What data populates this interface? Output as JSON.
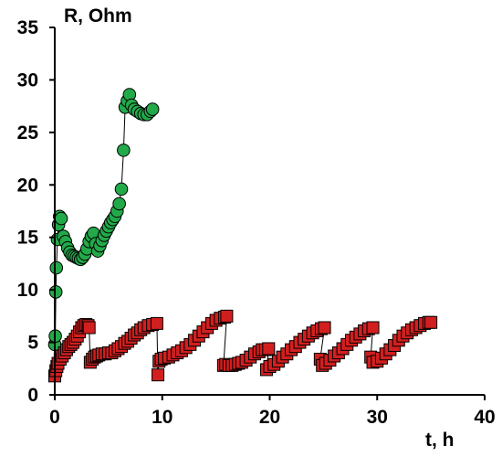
{
  "chart_data": {
    "type": "scatter",
    "title": "",
    "xlabel": "t, h",
    "ylabel": "R, Ohm",
    "xlim": [
      0,
      40
    ],
    "ylim": [
      0,
      35
    ],
    "xticks": [
      "0",
      "10",
      "20",
      "30",
      "40"
    ],
    "yticks": [
      "0",
      "5",
      "10",
      "15",
      "20",
      "25",
      "30",
      "35"
    ],
    "grid": false,
    "legend": "none",
    "series": [
      {
        "marker": "circle",
        "color": "#22a94a",
        "line": true,
        "points": [
          [
            0.0,
            4.8
          ],
          [
            0.05,
            5.6
          ],
          [
            0.1,
            9.8
          ],
          [
            0.15,
            12.1
          ],
          [
            0.25,
            14.8
          ],
          [
            0.35,
            16.2
          ],
          [
            0.45,
            17.0
          ],
          [
            0.6,
            16.8
          ],
          [
            0.8,
            15.1
          ],
          [
            1.0,
            14.6
          ],
          [
            1.2,
            14.0
          ],
          [
            1.4,
            13.6
          ],
          [
            1.6,
            13.3
          ],
          [
            1.8,
            13.2
          ],
          [
            2.0,
            13.1
          ],
          [
            2.2,
            13.0
          ],
          [
            2.4,
            12.9
          ],
          [
            2.6,
            13.1
          ],
          [
            2.8,
            13.4
          ],
          [
            3.0,
            13.9
          ],
          [
            3.2,
            14.6
          ],
          [
            3.4,
            15.1
          ],
          [
            3.6,
            15.4
          ],
          [
            3.8,
            14.4
          ],
          [
            4.0,
            13.7
          ],
          [
            4.2,
            14.2
          ],
          [
            4.4,
            14.7
          ],
          [
            4.6,
            15.2
          ],
          [
            4.8,
            15.6
          ],
          [
            5.0,
            16.0
          ],
          [
            5.2,
            16.4
          ],
          [
            5.4,
            16.7
          ],
          [
            5.6,
            17.0
          ],
          [
            5.8,
            17.5
          ],
          [
            6.0,
            18.2
          ],
          [
            6.2,
            19.6
          ],
          [
            6.4,
            23.3
          ],
          [
            6.55,
            27.4
          ],
          [
            6.75,
            28.0
          ],
          [
            6.95,
            28.6
          ],
          [
            7.15,
            27.6
          ],
          [
            7.4,
            27.2
          ],
          [
            7.7,
            27.0
          ],
          [
            8.0,
            26.8
          ],
          [
            8.3,
            26.7
          ],
          [
            8.6,
            26.7
          ],
          [
            8.9,
            27.0
          ],
          [
            9.1,
            27.2
          ]
        ]
      },
      {
        "marker": "square",
        "color": "#d11f1f",
        "line": true,
        "points": [
          [
            0.0,
            1.8
          ],
          [
            0.1,
            2.3
          ],
          [
            0.2,
            2.7
          ],
          [
            0.3,
            3.0
          ],
          [
            0.5,
            3.4
          ],
          [
            0.7,
            3.7
          ],
          [
            0.9,
            4.0
          ],
          [
            1.1,
            4.3
          ],
          [
            1.3,
            4.6
          ],
          [
            1.5,
            4.8
          ],
          [
            1.7,
            5.0
          ],
          [
            1.9,
            5.3
          ],
          [
            2.1,
            5.6
          ],
          [
            2.3,
            6.0
          ],
          [
            2.5,
            6.4
          ],
          [
            2.7,
            6.6
          ],
          [
            2.9,
            6.7
          ],
          [
            3.1,
            6.6
          ],
          [
            3.2,
            6.4
          ],
          [
            3.3,
            3.1
          ],
          [
            3.5,
            3.4
          ],
          [
            3.7,
            3.6
          ],
          [
            3.9,
            3.7
          ],
          [
            4.1,
            3.8
          ],
          [
            4.4,
            3.9
          ],
          [
            4.7,
            3.9
          ],
          [
            5.0,
            4.0
          ],
          [
            5.3,
            4.0
          ],
          [
            5.6,
            4.2
          ],
          [
            5.9,
            4.4
          ],
          [
            6.2,
            4.6
          ],
          [
            6.5,
            4.9
          ],
          [
            6.8,
            5.1
          ],
          [
            7.1,
            5.4
          ],
          [
            7.4,
            5.7
          ],
          [
            7.7,
            5.9
          ],
          [
            8.0,
            6.2
          ],
          [
            8.3,
            6.4
          ],
          [
            8.7,
            6.6
          ],
          [
            9.1,
            6.7
          ],
          [
            9.5,
            6.8
          ],
          [
            9.6,
            1.9
          ],
          [
            9.7,
            3.2
          ],
          [
            9.9,
            3.4
          ],
          [
            10.2,
            3.5
          ],
          [
            10.6,
            3.6
          ],
          [
            11.0,
            3.8
          ],
          [
            11.4,
            4.0
          ],
          [
            11.8,
            4.2
          ],
          [
            12.2,
            4.5
          ],
          [
            12.6,
            4.8
          ],
          [
            13.0,
            5.2
          ],
          [
            13.4,
            5.6
          ],
          [
            13.8,
            6.0
          ],
          [
            14.2,
            6.4
          ],
          [
            14.6,
            6.8
          ],
          [
            15.0,
            7.1
          ],
          [
            15.4,
            7.3
          ],
          [
            15.8,
            7.4
          ],
          [
            16.0,
            7.5
          ],
          [
            15.7,
            2.8
          ],
          [
            15.9,
            2.9
          ],
          [
            16.2,
            2.8
          ],
          [
            16.5,
            2.8
          ],
          [
            16.8,
            2.9
          ],
          [
            17.1,
            3.0
          ],
          [
            17.4,
            3.1
          ],
          [
            17.8,
            3.3
          ],
          [
            18.2,
            3.6
          ],
          [
            18.6,
            3.9
          ],
          [
            19.0,
            4.1
          ],
          [
            19.3,
            4.3
          ],
          [
            19.6,
            4.3
          ],
          [
            19.9,
            4.4
          ],
          [
            19.7,
            2.4
          ],
          [
            20.0,
            2.7
          ],
          [
            20.4,
            2.9
          ],
          [
            20.8,
            3.2
          ],
          [
            21.2,
            3.6
          ],
          [
            21.6,
            3.9
          ],
          [
            22.0,
            4.3
          ],
          [
            22.4,
            4.6
          ],
          [
            22.8,
            5.0
          ],
          [
            23.2,
            5.3
          ],
          [
            23.6,
            5.6
          ],
          [
            24.0,
            5.9
          ],
          [
            24.4,
            6.1
          ],
          [
            24.8,
            6.3
          ],
          [
            25.1,
            6.4
          ],
          [
            24.7,
            3.4
          ],
          [
            24.9,
            2.8
          ],
          [
            25.2,
            3.0
          ],
          [
            25.6,
            3.3
          ],
          [
            26.0,
            3.7
          ],
          [
            26.4,
            4.0
          ],
          [
            26.8,
            4.4
          ],
          [
            27.2,
            4.8
          ],
          [
            27.6,
            5.2
          ],
          [
            28.0,
            5.5
          ],
          [
            28.4,
            5.8
          ],
          [
            28.8,
            6.1
          ],
          [
            29.2,
            6.3
          ],
          [
            29.6,
            6.4
          ],
          [
            29.4,
            3.6
          ],
          [
            29.6,
            3.1
          ],
          [
            30.0,
            3.2
          ],
          [
            30.4,
            3.5
          ],
          [
            30.8,
            3.9
          ],
          [
            31.2,
            4.3
          ],
          [
            31.6,
            4.7
          ],
          [
            32.0,
            5.2
          ],
          [
            32.4,
            5.6
          ],
          [
            32.8,
            5.9
          ],
          [
            33.2,
            6.2
          ],
          [
            33.6,
            6.4
          ],
          [
            34.0,
            6.6
          ],
          [
            34.4,
            6.8
          ],
          [
            34.8,
            6.9
          ],
          [
            35.0,
            6.9
          ]
        ]
      }
    ]
  }
}
